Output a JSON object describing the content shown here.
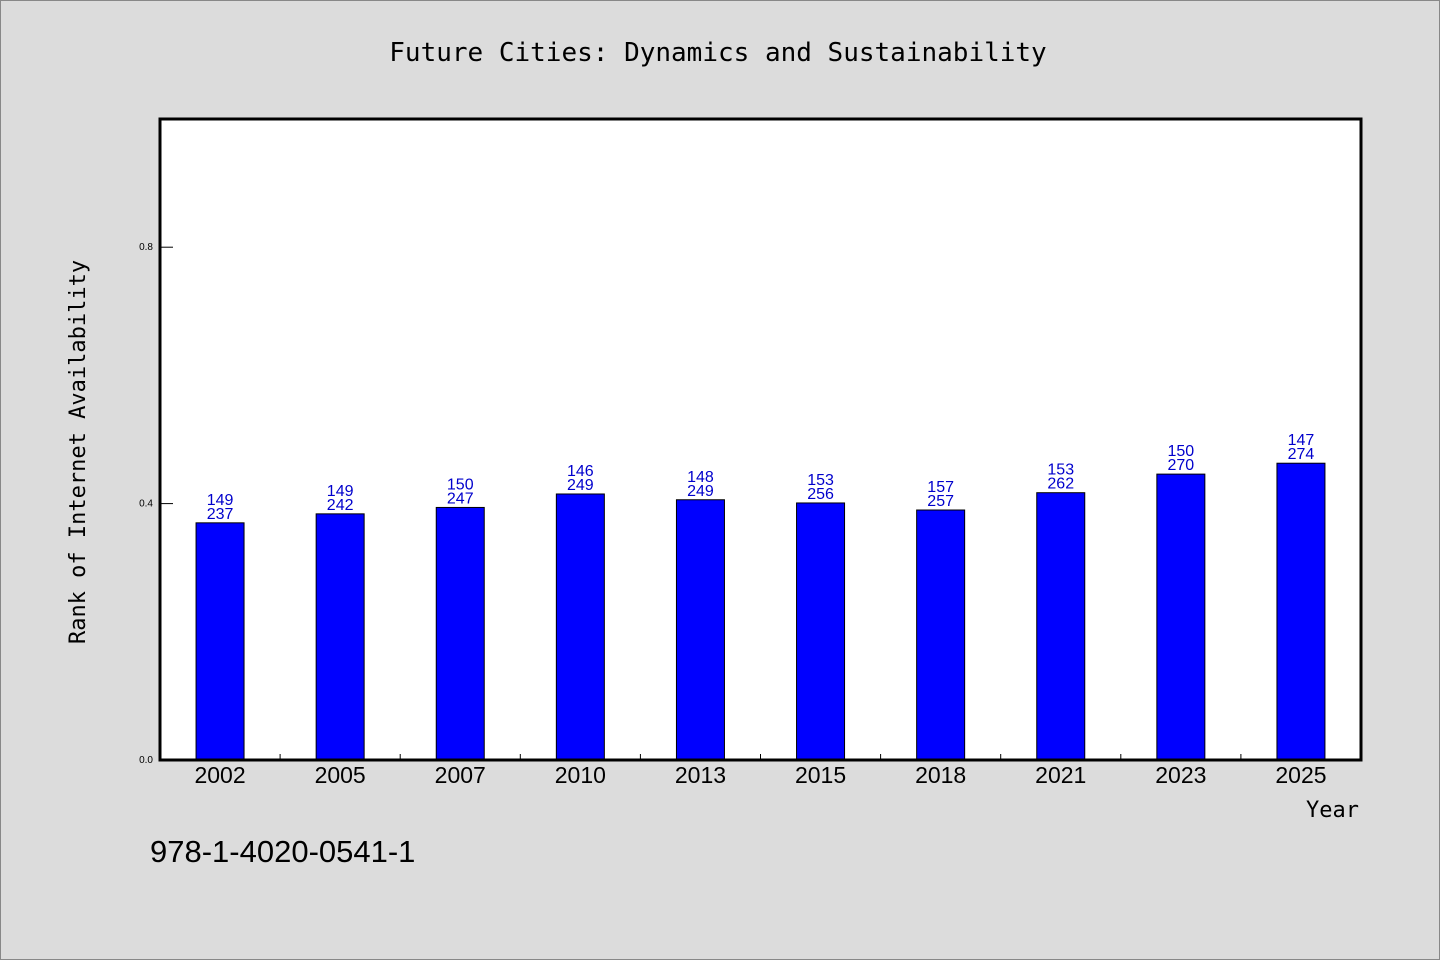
{
  "chart_data": {
    "type": "bar",
    "title": "Future Cities: Dynamics and Sustainability",
    "xlabel": "Year",
    "ylabel": "Rank of Internet Availability",
    "categories": [
      "2002",
      "2005",
      "2007",
      "2010",
      "2013",
      "2015",
      "2018",
      "2021",
      "2023",
      "2025"
    ],
    "values": [
      0.37,
      0.384,
      0.394,
      0.415,
      0.406,
      0.401,
      0.39,
      0.417,
      0.446,
      0.463
    ],
    "data_labels": [
      [
        "149",
        "237"
      ],
      [
        "149",
        "242"
      ],
      [
        "150",
        "247"
      ],
      [
        "146",
        "249"
      ],
      [
        "148",
        "249"
      ],
      [
        "153",
        "256"
      ],
      [
        "157",
        "257"
      ],
      [
        "153",
        "262"
      ],
      [
        "150",
        "270"
      ],
      [
        "147",
        "274"
      ]
    ],
    "yticks": [
      "0.0",
      "0.4",
      "0.8"
    ],
    "ylim": [
      0,
      1.0
    ],
    "grid": false,
    "legend": "none",
    "colors": {
      "bar": "#0000ff",
      "data_label": "#0000cc",
      "background": "#dcdcdc",
      "plot_background": "#ffffff"
    }
  },
  "footer": {
    "isbn": "978-1-4020-0541-1"
  }
}
